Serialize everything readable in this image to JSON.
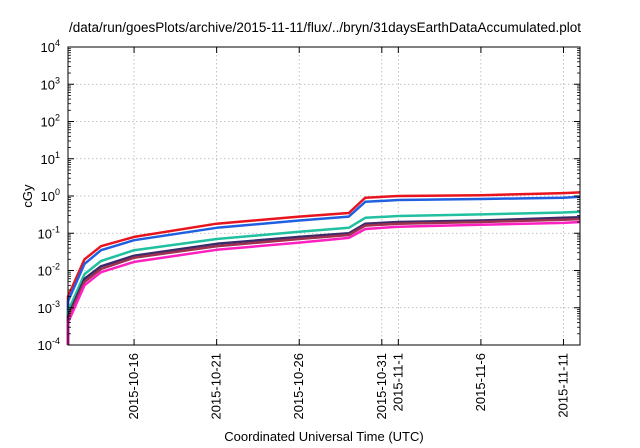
{
  "chart_data": {
    "type": "line",
    "title": "/data/run/goesPlots/archive/2015-11-11/flux/../bryn/31daysEarthDataAccumulated.plot",
    "xlabel": "Coordinated Universal Time (UTC)",
    "ylabel": "cGy",
    "y_scale": "log",
    "ylim": [
      0.0001,
      10000
    ],
    "xlim": [
      "2015-10-12",
      "2015-11-12"
    ],
    "grid": true,
    "y_ticks": [
      {
        "base": "10",
        "exp": "-4"
      },
      {
        "base": "10",
        "exp": "-3"
      },
      {
        "base": "10",
        "exp": "-2"
      },
      {
        "base": "10",
        "exp": "-1"
      },
      {
        "base": "10",
        "exp": "0"
      },
      {
        "base": "10",
        "exp": "1"
      },
      {
        "base": "10",
        "exp": "2"
      },
      {
        "base": "10",
        "exp": "3"
      },
      {
        "base": "10",
        "exp": "4"
      }
    ],
    "x_ticks": [
      "2015-10-16",
      "2015-10-21",
      "2015-10-26",
      "2015-10-31",
      "2015-11-1",
      "2015-11-6",
      "2015-11-11"
    ],
    "x_tick_dates": [
      "2015-10-16",
      "2015-10-21",
      "2015-10-26",
      "2015-10-31",
      "2015-11-01",
      "2015-11-06",
      "2015-11-11"
    ],
    "series": [
      {
        "color": "#e8141e",
        "x": [
          "2015-10-12",
          "2015-10-12",
          "2015-10-13",
          "2015-10-14",
          "2015-10-16",
          "2015-10-21",
          "2015-10-26",
          "2015-10-29",
          "2015-10-30",
          "2015-11-01",
          "2015-11-06",
          "2015-11-11",
          "2015-11-12"
        ],
        "values": [
          0.0001,
          0.002,
          0.02,
          0.045,
          0.08,
          0.18,
          0.28,
          0.35,
          0.9,
          1.0,
          1.05,
          1.2,
          1.25
        ]
      },
      {
        "color": "#2060e0",
        "x": [
          "2015-10-12",
          "2015-10-12",
          "2015-10-13",
          "2015-10-14",
          "2015-10-16",
          "2015-10-21",
          "2015-10-26",
          "2015-10-29",
          "2015-10-30",
          "2015-11-01",
          "2015-11-06",
          "2015-11-11",
          "2015-11-12"
        ],
        "values": [
          0.0001,
          0.0015,
          0.015,
          0.035,
          0.065,
          0.14,
          0.22,
          0.28,
          0.7,
          0.78,
          0.83,
          0.9,
          0.95
        ]
      },
      {
        "color": "#20c0a0",
        "x": [
          "2015-10-12",
          "2015-10-12",
          "2015-10-13",
          "2015-10-14",
          "2015-10-16",
          "2015-10-21",
          "2015-10-26",
          "2015-10-29",
          "2015-10-30",
          "2015-11-01",
          "2015-11-06",
          "2015-11-11",
          "2015-11-12"
        ],
        "values": [
          0.0001,
          0.0008,
          0.008,
          0.018,
          0.035,
          0.07,
          0.11,
          0.14,
          0.26,
          0.29,
          0.32,
          0.36,
          0.38
        ]
      },
      {
        "color": "#3a2a6a",
        "x": [
          "2015-10-12",
          "2015-10-12",
          "2015-10-13",
          "2015-10-14",
          "2015-10-16",
          "2015-10-21",
          "2015-10-26",
          "2015-10-29",
          "2015-10-30",
          "2015-11-01",
          "2015-11-06",
          "2015-11-11",
          "2015-11-12"
        ],
        "values": [
          0.0001,
          0.0006,
          0.006,
          0.013,
          0.025,
          0.052,
          0.08,
          0.1,
          0.18,
          0.2,
          0.22,
          0.26,
          0.27
        ]
      },
      {
        "color": "#a03050",
        "x": [
          "2015-10-12",
          "2015-10-12",
          "2015-10-13",
          "2015-10-14",
          "2015-10-16",
          "2015-10-21",
          "2015-10-26",
          "2015-10-29",
          "2015-10-30",
          "2015-11-01",
          "2015-11-06",
          "2015-11-11",
          "2015-11-12"
        ],
        "values": [
          0.0001,
          0.0005,
          0.005,
          0.011,
          0.022,
          0.045,
          0.07,
          0.09,
          0.16,
          0.18,
          0.2,
          0.23,
          0.24
        ]
      },
      {
        "color": "#ff20c0",
        "x": [
          "2015-10-12",
          "2015-10-12",
          "2015-10-13",
          "2015-10-14",
          "2015-10-16",
          "2015-10-21",
          "2015-10-26",
          "2015-10-29",
          "2015-10-30",
          "2015-11-01",
          "2015-11-06",
          "2015-11-11",
          "2015-11-12"
        ],
        "values": [
          0.0001,
          0.0004,
          0.004,
          0.009,
          0.017,
          0.036,
          0.056,
          0.075,
          0.13,
          0.15,
          0.17,
          0.19,
          0.2
        ]
      }
    ]
  }
}
